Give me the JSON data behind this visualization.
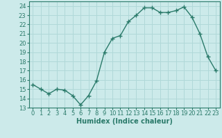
{
  "title": "",
  "xlabel": "Humidex (Indice chaleur)",
  "x": [
    0,
    1,
    2,
    3,
    4,
    5,
    6,
    7,
    8,
    9,
    10,
    11,
    12,
    13,
    14,
    15,
    16,
    17,
    18,
    19,
    20,
    21,
    22,
    23
  ],
  "y": [
    15.5,
    15.0,
    14.5,
    15.0,
    14.9,
    14.3,
    13.3,
    14.3,
    15.9,
    19.0,
    20.5,
    20.8,
    22.3,
    23.0,
    23.8,
    23.8,
    23.3,
    23.3,
    23.5,
    23.9,
    22.8,
    21.0,
    18.5,
    17.0
  ],
  "line_color": "#2a7a6a",
  "marker": "+",
  "markersize": 4,
  "linewidth": 1.0,
  "markeredgewidth": 1.0,
  "bg_color": "#cceaea",
  "grid_color": "#b0d8d8",
  "xlim": [
    -0.5,
    23.5
  ],
  "ylim": [
    13,
    24.5
  ],
  "yticks": [
    13,
    14,
    15,
    16,
    17,
    18,
    19,
    20,
    21,
    22,
    23,
    24
  ],
  "xticks": [
    0,
    1,
    2,
    3,
    4,
    5,
    6,
    7,
    8,
    9,
    10,
    11,
    12,
    13,
    14,
    15,
    16,
    17,
    18,
    19,
    20,
    21,
    22,
    23
  ],
  "xlabel_fontsize": 7,
  "tick_fontsize": 6,
  "tick_color": "#2a7a6a",
  "axis_color": "#2a7a6a"
}
